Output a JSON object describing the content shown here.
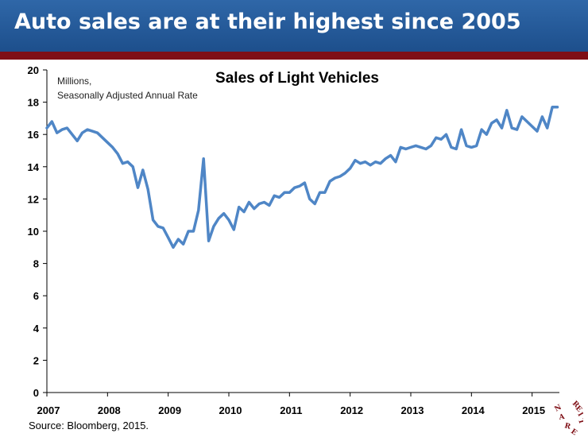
{
  "header": {
    "title": "Auto sales are at their highest since 2005"
  },
  "chart_data": {
    "type": "line",
    "title": "Sales of Light Vehicles",
    "unit_label_line1": "Millions,",
    "unit_label_line2": "Seasonally Adjusted Annual Rate",
    "xlabel": "",
    "ylabel": "",
    "xlim": [
      2007,
      2015.45
    ],
    "ylim": [
      0,
      20
    ],
    "y_ticks": [
      0,
      2,
      4,
      6,
      8,
      10,
      12,
      14,
      16,
      18,
      20
    ],
    "x_ticks": [
      "2007",
      "2008",
      "2009",
      "2010",
      "2011",
      "2012",
      "2013",
      "2014",
      "2015"
    ],
    "grid": false,
    "color": "#4f86c6",
    "series": [
      {
        "x": [
          2007.0,
          2007.083,
          2007.167,
          2007.25,
          2007.333,
          2007.417,
          2007.5,
          2007.583,
          2007.667,
          2007.75,
          2007.833,
          2007.917,
          2008.0,
          2008.083,
          2008.167,
          2008.25,
          2008.333,
          2008.417,
          2008.5,
          2008.583,
          2008.667,
          2008.75,
          2008.833,
          2008.917,
          2009.0,
          2009.083,
          2009.167,
          2009.25,
          2009.333,
          2009.417,
          2009.5,
          2009.583,
          2009.667,
          2009.75,
          2009.833,
          2009.917,
          2010.0,
          2010.083,
          2010.167,
          2010.25,
          2010.333,
          2010.417,
          2010.5,
          2010.583,
          2010.667,
          2010.75,
          2010.833,
          2010.917,
          2011.0,
          2011.083,
          2011.167,
          2011.25,
          2011.333,
          2011.417,
          2011.5,
          2011.583,
          2011.667,
          2011.75,
          2011.833,
          2011.917,
          2012.0,
          2012.083,
          2012.167,
          2012.25,
          2012.333,
          2012.417,
          2012.5,
          2012.583,
          2012.667,
          2012.75,
          2012.833,
          2012.917,
          2013.0,
          2013.083,
          2013.167,
          2013.25,
          2013.333,
          2013.417,
          2013.5,
          2013.583,
          2013.667,
          2013.75,
          2013.833,
          2013.917,
          2014.0,
          2014.083,
          2014.167,
          2014.25,
          2014.333,
          2014.417,
          2014.5,
          2014.583,
          2014.667,
          2014.75,
          2014.833,
          2014.917,
          2015.0,
          2015.083,
          2015.167,
          2015.25,
          2015.333,
          2015.417
        ],
        "values": [
          16.4,
          16.8,
          16.1,
          16.3,
          16.4,
          16.0,
          15.6,
          16.1,
          16.3,
          16.2,
          16.1,
          15.8,
          15.5,
          15.2,
          14.8,
          14.2,
          14.3,
          14.0,
          12.7,
          13.8,
          12.6,
          10.7,
          10.3,
          10.2,
          9.6,
          9.0,
          9.5,
          9.2,
          10.0,
          10.0,
          11.3,
          14.5,
          9.4,
          10.3,
          10.8,
          11.1,
          10.7,
          10.1,
          11.5,
          11.2,
          11.8,
          11.4,
          11.7,
          11.8,
          11.6,
          12.2,
          12.1,
          12.4,
          12.4,
          12.7,
          12.8,
          13.0,
          12.0,
          11.7,
          12.4,
          12.4,
          13.1,
          13.3,
          13.4,
          13.6,
          13.9,
          14.4,
          14.2,
          14.3,
          14.1,
          14.3,
          14.2,
          14.5,
          14.7,
          14.3,
          15.2,
          15.1,
          15.2,
          15.3,
          15.2,
          15.1,
          15.3,
          15.8,
          15.7,
          16.0,
          15.2,
          15.1,
          16.3,
          15.3,
          15.2,
          15.3,
          16.3,
          16.0,
          16.7,
          16.9,
          16.4,
          17.5,
          16.4,
          16.3,
          17.1,
          16.8,
          16.5,
          16.2,
          17.1,
          16.4,
          17.7,
          17.7
        ]
      }
    ]
  },
  "source": "Source: Bloomberg, 2015.",
  "logo": {
    "text": "NAREIT"
  }
}
